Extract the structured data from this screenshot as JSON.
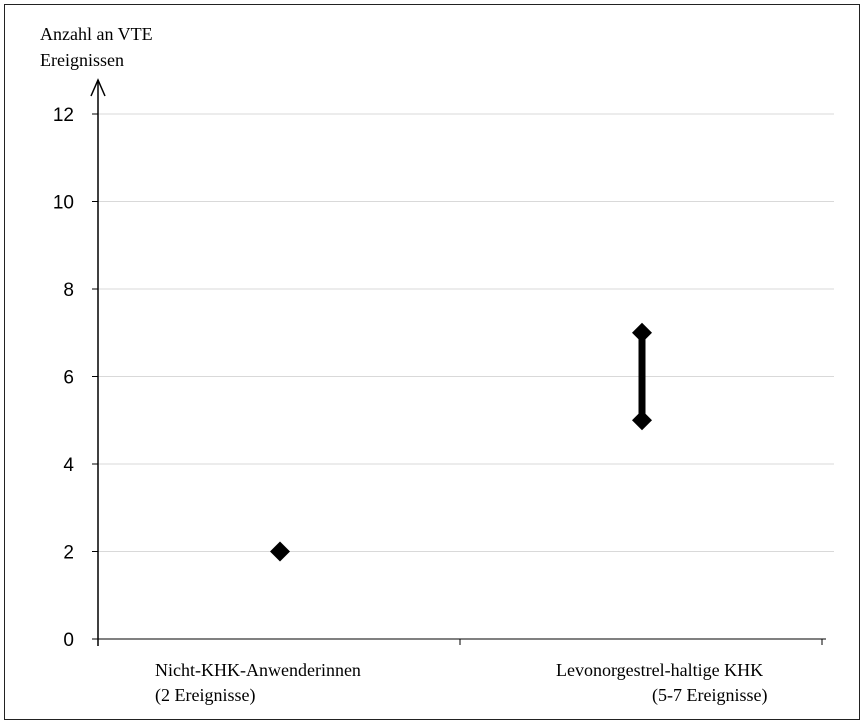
{
  "chart_data": {
    "type": "scatter",
    "ylabel_lines": [
      "Anzahl an VTE",
      "Ereignissen"
    ],
    "ylim": [
      0,
      12
    ],
    "yticks": [
      0,
      2,
      4,
      6,
      8,
      10,
      12
    ],
    "grid": true,
    "categories": [
      {
        "lines": [
          "Nicht-KHK-Anwenderinnen",
          "(2 Ereignisse)"
        ],
        "values": [
          2
        ]
      },
      {
        "lines": [
          "Levonorgestrel-haltige KHK",
          "(5-7 Ereignisse)"
        ],
        "values": [
          5,
          7
        ]
      }
    ],
    "colors": {
      "marker": "#000000",
      "grid": "#d9d9d9",
      "axis": "#000000"
    }
  }
}
